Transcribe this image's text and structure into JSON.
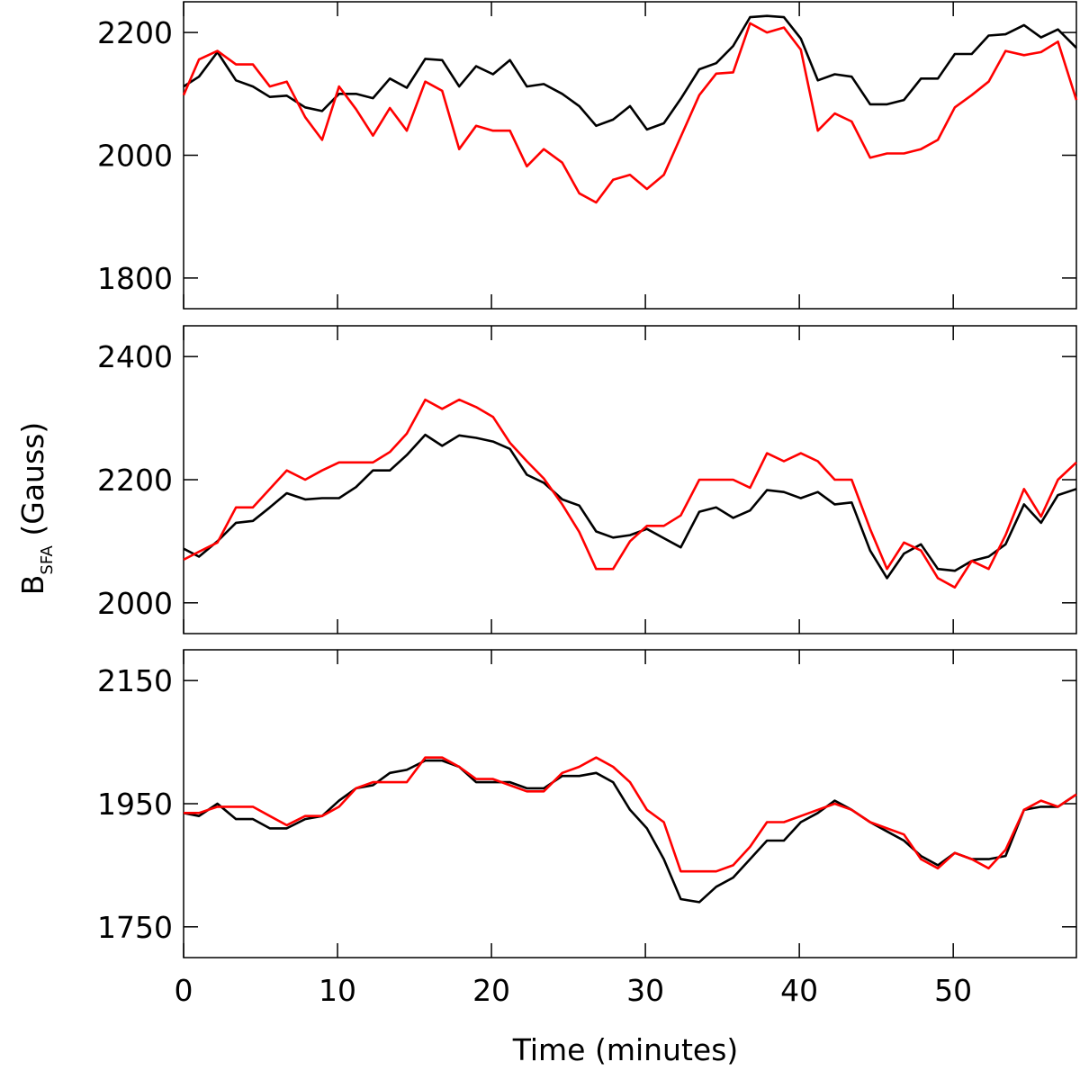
{
  "figure": {
    "ylabel_main": "B",
    "ylabel_sub": "SFA",
    "ylabel_unit": "(Gauss)",
    "xlabel": "Time (minutes)"
  },
  "chart_data": [
    {
      "type": "line",
      "xlim": [
        0,
        58
      ],
      "ylim": [
        1750,
        2250
      ],
      "yticks": [
        1800,
        2000,
        2200
      ],
      "xticks": [
        0,
        10,
        20,
        30,
        40,
        50
      ],
      "x": [
        0,
        1,
        2.2,
        3.4,
        4.5,
        5.6,
        6.7,
        7.9,
        9,
        10.1,
        11.2,
        12.3,
        13.4,
        14.5,
        15.7,
        16.8,
        17.9,
        19,
        20.1,
        21.2,
        22.3,
        23.4,
        24.6,
        25.7,
        26.8,
        27.9,
        29,
        30.1,
        31.2,
        32.3,
        33.5,
        34.6,
        35.7,
        36.8,
        37.9,
        39,
        40.1,
        41.2,
        42.3,
        43.4,
        44.6,
        45.7,
        46.8,
        47.9,
        49,
        50.1,
        51.2,
        52.3,
        53.4,
        54.6,
        55.7,
        56.8,
        58
      ],
      "xtick_labels_visible": false,
      "grid": false,
      "series": [
        {
          "color": "#000000",
          "values": [
            2112,
            2128,
            2168,
            2122,
            2112,
            2095,
            2097,
            2078,
            2072,
            2100,
            2100,
            2093,
            2125,
            2110,
            2157,
            2155,
            2112,
            2145,
            2132,
            2155,
            2112,
            2116,
            2100,
            2080,
            2048,
            2058,
            2080,
            2042,
            2052,
            2092,
            2140,
            2150,
            2178,
            2225,
            2227,
            2225,
            2190,
            2122,
            2132,
            2128,
            2083,
            2083,
            2090,
            2125,
            2125,
            2165,
            2165,
            2195,
            2197,
            2212,
            2192,
            2205,
            2175
          ]
        },
        {
          "color": "#ff0000",
          "values": [
            2098,
            2156,
            2170,
            2148,
            2148,
            2112,
            2120,
            2062,
            2025,
            2112,
            2075,
            2032,
            2077,
            2040,
            2120,
            2105,
            2010,
            2048,
            2040,
            2040,
            1982,
            2010,
            1988,
            1938,
            1923,
            1960,
            1968,
            1945,
            1968,
            2030,
            2098,
            2133,
            2135,
            2215,
            2200,
            2208,
            2172,
            2040,
            2068,
            2055,
            1996,
            2003,
            2003,
            2010,
            2025,
            2078,
            2098,
            2120,
            2170,
            2163,
            2168,
            2185,
            2090
          ]
        }
      ]
    },
    {
      "type": "line",
      "xlim": [
        0,
        58
      ],
      "ylim": [
        1950,
        2450
      ],
      "yticks": [
        2000,
        2200,
        2400
      ],
      "xticks": [
        0,
        10,
        20,
        30,
        40,
        50
      ],
      "x": [
        0,
        1,
        2.2,
        3.4,
        4.5,
        5.6,
        6.7,
        7.9,
        9,
        10.1,
        11.2,
        12.3,
        13.4,
        14.5,
        15.7,
        16.8,
        17.9,
        19,
        20.1,
        21.2,
        22.3,
        23.4,
        24.6,
        25.7,
        26.8,
        27.9,
        29,
        30.1,
        31.2,
        32.3,
        33.5,
        34.6,
        35.7,
        36.8,
        37.9,
        39,
        40.1,
        41.2,
        42.3,
        43.4,
        44.6,
        45.7,
        46.8,
        47.9,
        49,
        50.1,
        51.2,
        52.3,
        53.4,
        54.6,
        55.7,
        56.8,
        58
      ],
      "xtick_labels_visible": false,
      "grid": false,
      "series": [
        {
          "color": "#000000",
          "values": [
            2088,
            2075,
            2100,
            2130,
            2133,
            2155,
            2178,
            2168,
            2170,
            2170,
            2188,
            2215,
            2215,
            2240,
            2273,
            2255,
            2272,
            2268,
            2262,
            2250,
            2208,
            2195,
            2168,
            2158,
            2116,
            2106,
            2110,
            2120,
            2105,
            2090,
            2148,
            2155,
            2138,
            2150,
            2183,
            2180,
            2170,
            2180,
            2160,
            2163,
            2085,
            2040,
            2080,
            2095,
            2055,
            2052,
            2068,
            2075,
            2095,
            2160,
            2130,
            2175,
            2185
          ]
        },
        {
          "color": "#ff0000",
          "values": [
            2070,
            2083,
            2098,
            2155,
            2155,
            2185,
            2215,
            2200,
            2215,
            2228,
            2228,
            2228,
            2245,
            2275,
            2330,
            2315,
            2330,
            2318,
            2302,
            2260,
            2230,
            2202,
            2160,
            2115,
            2055,
            2055,
            2100,
            2125,
            2125,
            2142,
            2200,
            2200,
            2200,
            2187,
            2243,
            2230,
            2243,
            2230,
            2200,
            2200,
            2120,
            2055,
            2098,
            2085,
            2040,
            2025,
            2068,
            2055,
            2110,
            2185,
            2140,
            2200,
            2228
          ]
        }
      ]
    },
    {
      "type": "line",
      "xlim": [
        0,
        58
      ],
      "ylim": [
        1700,
        2200
      ],
      "yticks": [
        1750,
        1950,
        2150
      ],
      "xticks": [
        0,
        10,
        20,
        30,
        40,
        50
      ],
      "xtick_labels": [
        "0",
        "10",
        "20",
        "30",
        "40",
        "50"
      ],
      "xtick_labels_visible": true,
      "x": [
        0,
        1,
        2.2,
        3.4,
        4.5,
        5.6,
        6.7,
        7.9,
        9,
        10.1,
        11.2,
        12.3,
        13.4,
        14.5,
        15.7,
        16.8,
        17.9,
        19,
        20.1,
        21.2,
        22.3,
        23.4,
        24.6,
        25.7,
        26.8,
        27.9,
        29,
        30.1,
        31.2,
        32.3,
        33.5,
        34.6,
        35.7,
        36.8,
        37.9,
        39,
        40.1,
        41.2,
        42.3,
        43.4,
        44.6,
        45.7,
        46.8,
        47.9,
        49,
        50.1,
        51.2,
        52.3,
        53.4,
        54.6,
        55.7,
        56.8,
        58
      ],
      "grid": false,
      "series": [
        {
          "color": "#000000",
          "values": [
            1935,
            1930,
            1950,
            1925,
            1925,
            1910,
            1910,
            1925,
            1930,
            1955,
            1975,
            1980,
            2000,
            2005,
            2020,
            2020,
            2010,
            1985,
            1985,
            1985,
            1975,
            1975,
            1995,
            1995,
            2000,
            1985,
            1940,
            1910,
            1860,
            1795,
            1790,
            1815,
            1830,
            1860,
            1890,
            1890,
            1920,
            1935,
            1955,
            1940,
            1920,
            1905,
            1890,
            1865,
            1850,
            1870,
            1860,
            1860,
            1865,
            1940,
            1945,
            1945,
            1965
          ]
        },
        {
          "color": "#ff0000",
          "values": [
            1935,
            1935,
            1945,
            1945,
            1945,
            1930,
            1915,
            1930,
            1930,
            1945,
            1975,
            1985,
            1985,
            1985,
            2025,
            2025,
            2010,
            1990,
            1990,
            1980,
            1970,
            1970,
            2000,
            2010,
            2025,
            2010,
            1985,
            1940,
            1920,
            1840,
            1840,
            1840,
            1850,
            1880,
            1920,
            1920,
            1930,
            1940,
            1950,
            1940,
            1920,
            1910,
            1900,
            1860,
            1845,
            1870,
            1860,
            1845,
            1875,
            1940,
            1955,
            1945,
            1965
          ]
        }
      ]
    }
  ]
}
